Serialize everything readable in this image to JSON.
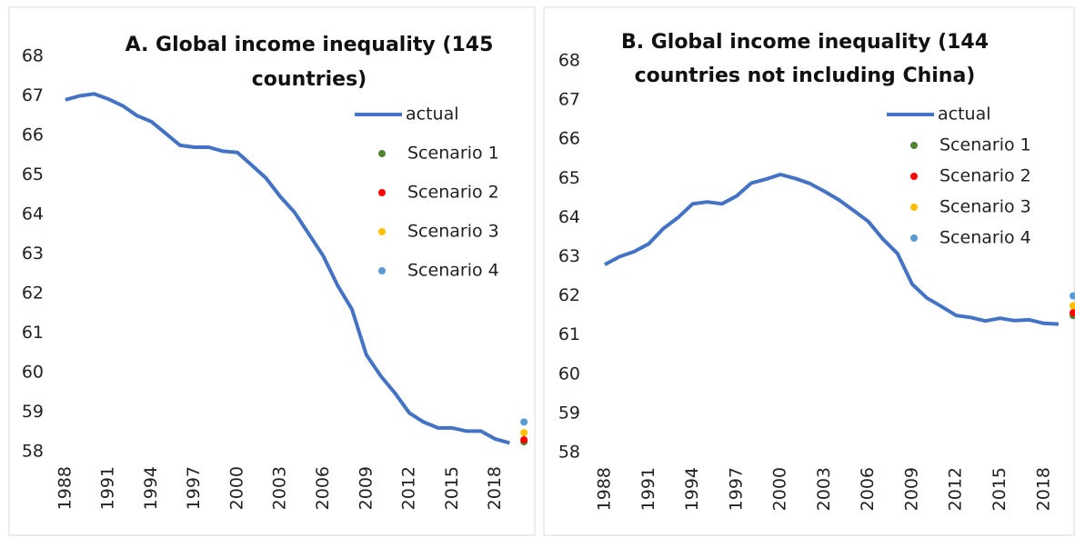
{
  "chart_data": [
    {
      "type": "line",
      "title": [
        "A. Global income inequality (145",
        "countries)"
      ],
      "xlim": [
        1987.5,
        2020.5
      ],
      "xticks": [
        1988,
        1991,
        1994,
        1997,
        2000,
        2003,
        2006,
        2009,
        2012,
        2015,
        2018
      ],
      "ylim": [
        58,
        68
      ],
      "yticks": [
        58,
        59,
        60,
        61,
        62,
        63,
        64,
        65,
        66,
        67,
        68
      ],
      "grid": false,
      "legend": "upper right",
      "series": [
        {
          "name": "actual",
          "color": "#4472c4",
          "x": [
            1988,
            1989,
            1990,
            1991,
            1992,
            1993,
            1994,
            1995,
            1996,
            1997,
            1998,
            1999,
            2000,
            2001,
            2002,
            2003,
            2004,
            2005,
            2006,
            2007,
            2008,
            2009,
            2010,
            2011,
            2012,
            2013,
            2014,
            2015,
            2016,
            2017,
            2018,
            2019
          ],
          "values": [
            66.9,
            67.0,
            67.05,
            66.92,
            66.75,
            66.5,
            66.35,
            66.05,
            65.75,
            65.7,
            65.7,
            65.6,
            65.57,
            65.25,
            64.92,
            64.45,
            64.05,
            63.5,
            62.95,
            62.2,
            61.6,
            60.45,
            59.92,
            59.48,
            58.98,
            58.75,
            58.6,
            58.6,
            58.52,
            58.52,
            58.32,
            58.22
          ]
        },
        {
          "name": "Scenario 1",
          "color": "#548235",
          "x": [
            2020
          ],
          "values": [
            58.25
          ]
        },
        {
          "name": "Scenario 2",
          "color": "#ff0000",
          "x": [
            2020
          ],
          "values": [
            58.3
          ]
        },
        {
          "name": "Scenario 3",
          "color": "#ffc000",
          "x": [
            2020
          ],
          "values": [
            58.48
          ]
        },
        {
          "name": "Scenario 4",
          "color": "#5b9bd5",
          "x": [
            2020
          ],
          "values": [
            58.75
          ]
        }
      ]
    },
    {
      "type": "line",
      "title": [
        "B. Global income inequality (144",
        "countries not including China)"
      ],
      "xlim": [
        1987.5,
        2020.5
      ],
      "xticks": [
        1988,
        1991,
        1994,
        1997,
        2000,
        2003,
        2006,
        2009,
        2012,
        2015,
        2018
      ],
      "ylim": [
        58,
        68
      ],
      "yticks": [
        58,
        59,
        60,
        61,
        62,
        63,
        64,
        65,
        66,
        67,
        68
      ],
      "grid": false,
      "legend": "upper right",
      "series": [
        {
          "name": "actual",
          "color": "#4472c4",
          "x": [
            1988,
            1989,
            1990,
            1991,
            1992,
            1993,
            1994,
            1995,
            1996,
            1997,
            1998,
            1999,
            2000,
            2001,
            2002,
            2003,
            2004,
            2005,
            2006,
            2007,
            2008,
            2009,
            2010,
            2011,
            2012,
            2013,
            2014,
            2015,
            2016,
            2017,
            2018,
            2019
          ],
          "values": [
            62.8,
            63.0,
            63.13,
            63.33,
            63.72,
            64.0,
            64.35,
            64.4,
            64.35,
            64.55,
            64.88,
            64.98,
            65.1,
            65.0,
            64.87,
            64.67,
            64.45,
            64.18,
            63.9,
            63.45,
            63.08,
            62.3,
            61.95,
            61.73,
            61.5,
            61.45,
            61.36,
            61.43,
            61.37,
            61.39,
            61.3,
            61.28
          ]
        },
        {
          "name": "Scenario 1",
          "color": "#548235",
          "x": [
            2020
          ],
          "values": [
            61.5
          ]
        },
        {
          "name": "Scenario 2",
          "color": "#ff0000",
          "x": [
            2020
          ],
          "values": [
            61.57
          ]
        },
        {
          "name": "Scenario 3",
          "color": "#ffc000",
          "x": [
            2020
          ],
          "values": [
            61.75
          ]
        },
        {
          "name": "Scenario 4",
          "color": "#5b9bd5",
          "x": [
            2020
          ],
          "values": [
            62.0
          ]
        }
      ]
    }
  ]
}
